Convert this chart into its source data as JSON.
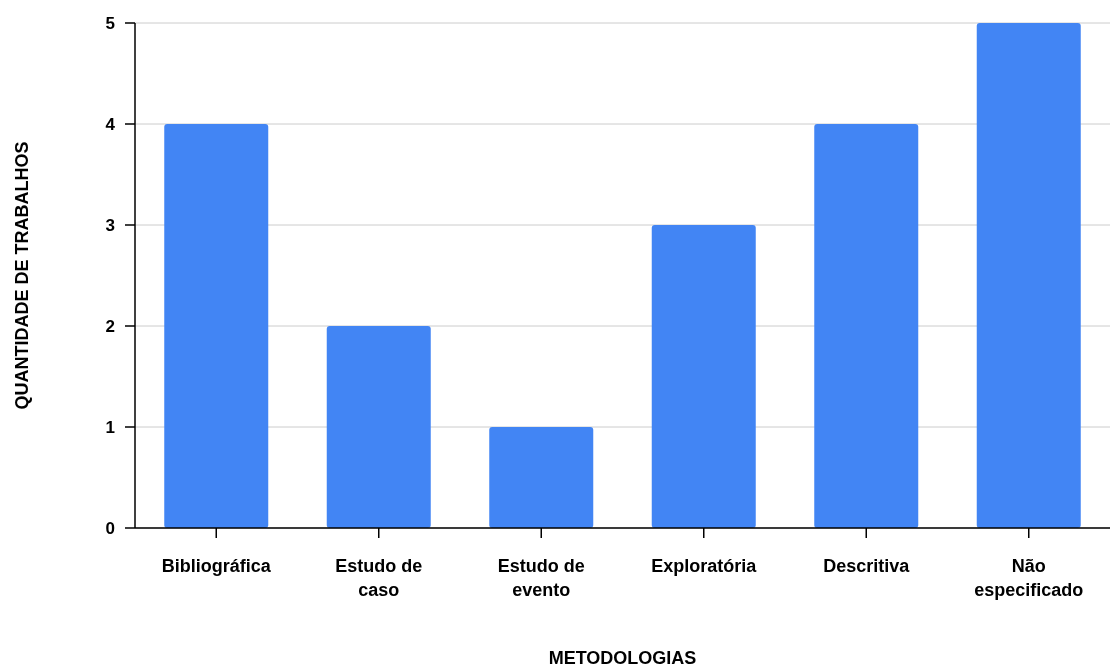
{
  "chart_data": {
    "type": "bar",
    "xlabel": "METODOLOGIAS",
    "ylabel": "QUANTIDADE DE TRABALHOS",
    "categories": [
      "Bibliográfica",
      "Estudo de caso",
      "Estudo de evento",
      "Exploratória",
      "Descritiva",
      "Não especificado"
    ],
    "values": [
      4,
      2,
      1,
      3,
      4,
      5
    ],
    "color": "#4285f4",
    "ylim": [
      0,
      5
    ],
    "yticks": [
      0,
      1,
      2,
      3,
      4,
      5
    ],
    "grid": "y"
  }
}
